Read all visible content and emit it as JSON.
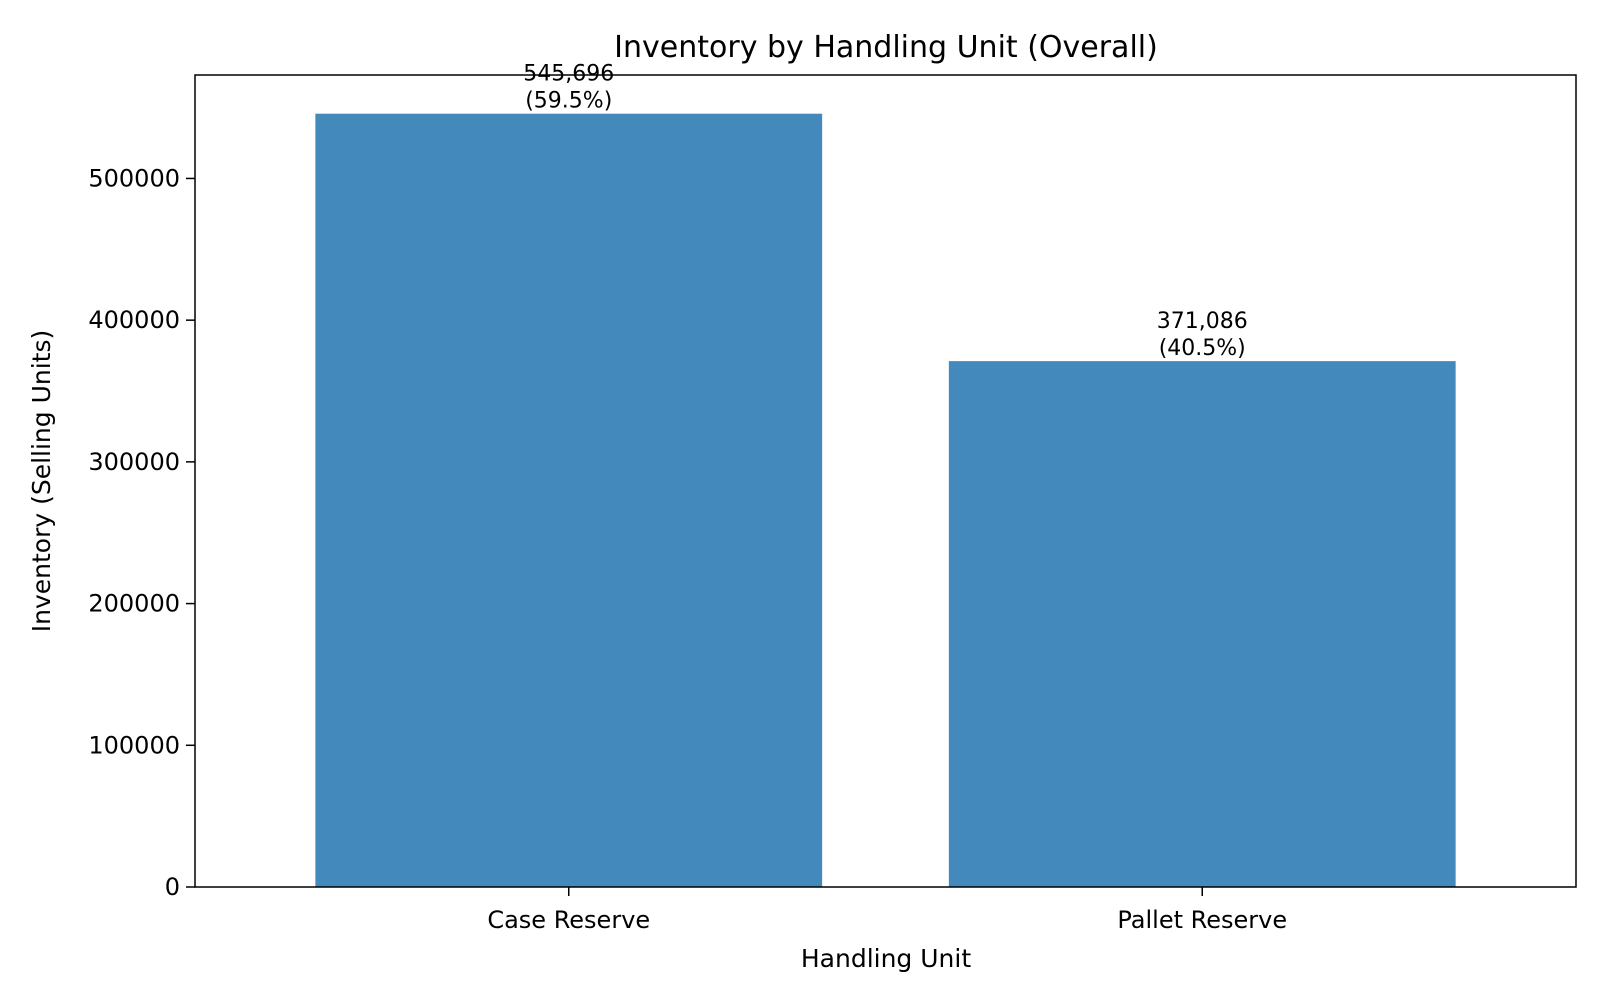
{
  "chart_data": {
    "type": "bar",
    "title": "Inventory by Handling Unit (Overall)",
    "xlabel": "Handling Unit",
    "ylabel": "Inventory (Selling Units)",
    "categories": [
      "Case Reserve",
      "Pallet Reserve"
    ],
    "values": [
      545696,
      371086
    ],
    "value_labels": [
      "545,696",
      "371,086"
    ],
    "percent_labels": [
      "(59.5%)",
      "(40.5%)"
    ],
    "ylim": [
      0,
      573000
    ],
    "yticks": [
      0,
      100000,
      200000,
      300000,
      400000,
      500000
    ],
    "ytick_labels": [
      "0",
      "100000",
      "200000",
      "300000",
      "400000",
      "500000"
    ],
    "bar_color": "#4389bc",
    "grid": false,
    "legend": "none"
  }
}
